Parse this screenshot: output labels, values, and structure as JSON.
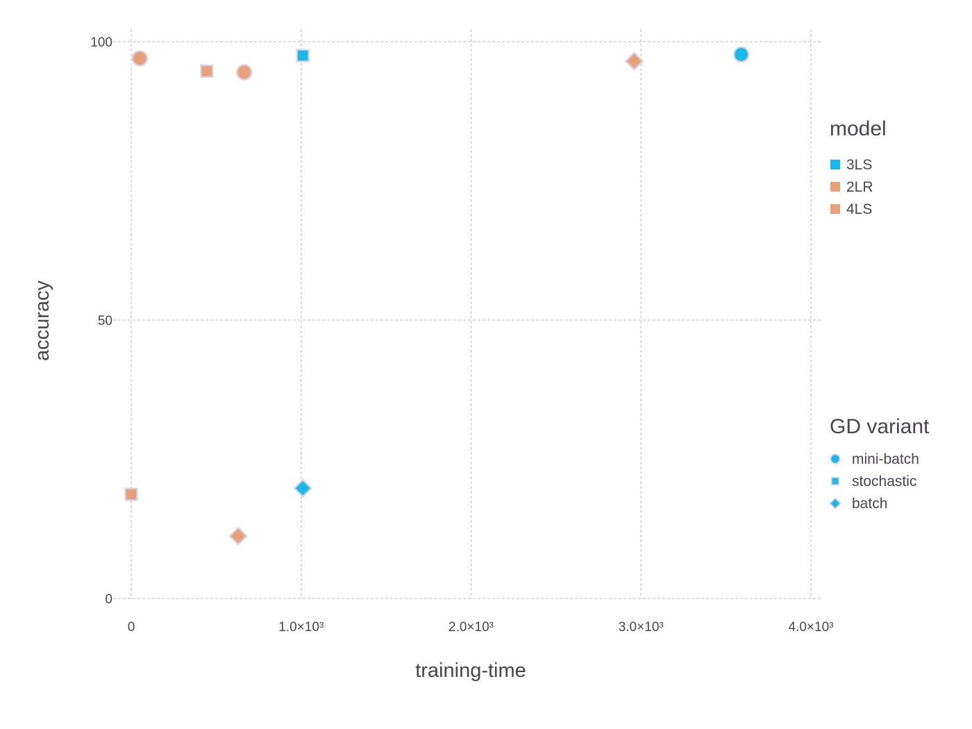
{
  "chart_data": {
    "type": "scatter",
    "title": "",
    "xlabel": "training-time",
    "ylabel": "accuracy",
    "xlim": [
      0,
      4000
    ],
    "ylim": [
      0,
      100
    ],
    "grid": true,
    "x_ticks": [
      {
        "value": 0,
        "label": "0"
      },
      {
        "value": 1000,
        "label": "1.0×10³"
      },
      {
        "value": 2000,
        "label": "2.0×10³"
      },
      {
        "value": 3000,
        "label": "3.0×10³"
      },
      {
        "value": 4000,
        "label": "4.0×10³"
      }
    ],
    "y_ticks": [
      {
        "value": 0,
        "label": "0"
      },
      {
        "value": 50,
        "label": "50"
      },
      {
        "value": 100,
        "label": "100"
      }
    ],
    "legend_placement": "right",
    "color_legend": {
      "title": "model",
      "entries": [
        {
          "label": "3LS",
          "color": "#1ab7ea"
        },
        {
          "label": "2LR",
          "color": "#e8a07a"
        },
        {
          "label": "4LS",
          "color": "#e8a07a"
        }
      ]
    },
    "shape_legend": {
      "title": "GD variant",
      "entries": [
        {
          "label": "mini-batch",
          "shape": "circle"
        },
        {
          "label": "stochastic",
          "shape": "square"
        },
        {
          "label": "batch",
          "shape": "diamond"
        }
      ]
    },
    "points": [
      {
        "x": 50,
        "y": 97,
        "model": "2LR",
        "variant": "mini-batch"
      },
      {
        "x": 445,
        "y": 94.7,
        "model": "2LR",
        "variant": "stochastic"
      },
      {
        "x": 665,
        "y": 94.5,
        "model": "4LS",
        "variant": "mini-batch"
      },
      {
        "x": 1010,
        "y": 97.5,
        "model": "3LS",
        "variant": "stochastic"
      },
      {
        "x": 2960,
        "y": 96.5,
        "model": "4LS",
        "variant": "batch"
      },
      {
        "x": 3590,
        "y": 97.7,
        "model": "3LS",
        "variant": "mini-batch"
      },
      {
        "x": 0,
        "y": 18.7,
        "model": "2LR",
        "variant": "stochastic"
      },
      {
        "x": 630,
        "y": 11.2,
        "model": "4LS",
        "variant": "batch"
      },
      {
        "x": 1010,
        "y": 19.8,
        "model": "3LS",
        "variant": "batch"
      }
    ]
  }
}
